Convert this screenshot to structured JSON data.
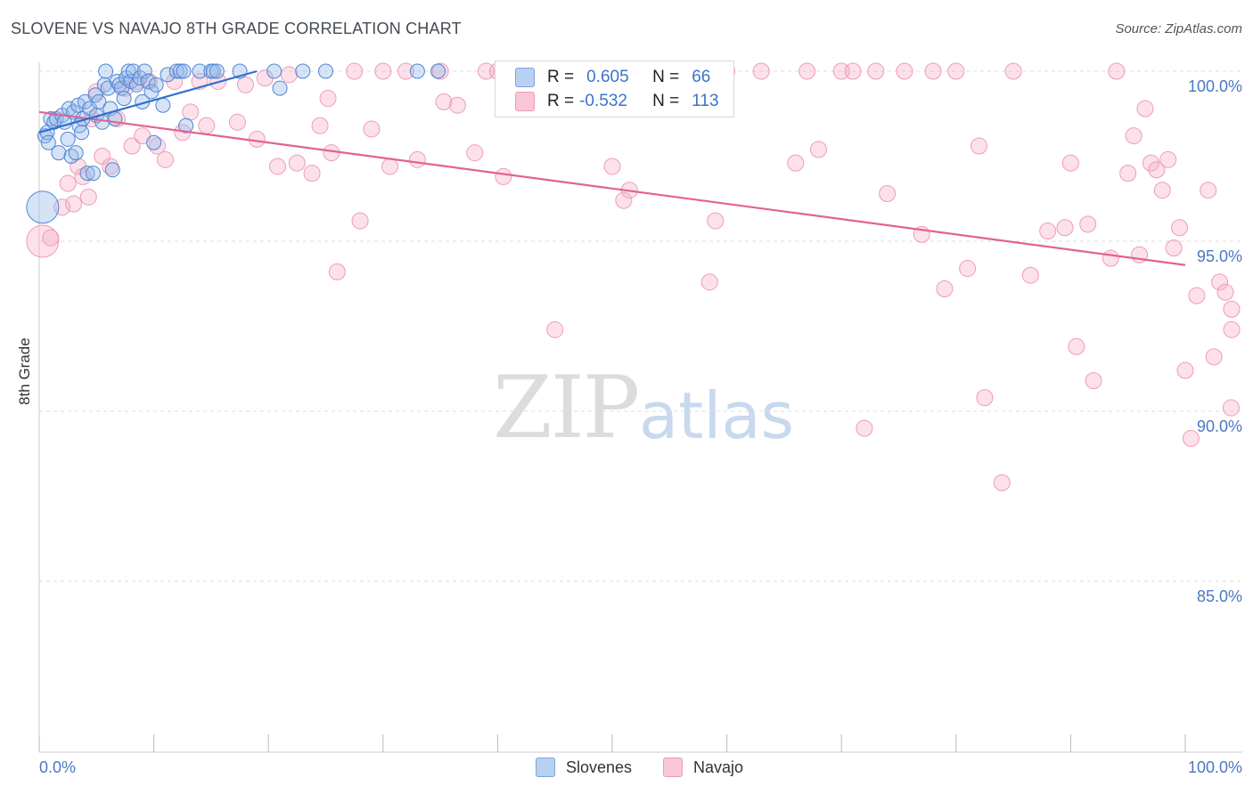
{
  "header": {
    "title": "SLOVENE VS NAVAJO 8TH GRADE CORRELATION CHART",
    "source": "Source: ZipAtlas.com"
  },
  "watermark": {
    "zip": "ZIP",
    "atlas": "atlas"
  },
  "legend": {
    "r_label": "R =",
    "n_label": "N =",
    "slovenes": {
      "r": "0.605",
      "n": "66"
    },
    "navajo": {
      "r": "-0.532",
      "n": "113"
    }
  },
  "bottom_legend": {
    "slovenes": "Slovenes",
    "navajo": "Navajo"
  },
  "chart_data": {
    "type": "scatter",
    "title": "SLOVENE VS NAVAJO 8TH GRADE CORRELATION CHART",
    "xlabel": "",
    "ylabel": "8th Grade",
    "xlim": [
      0,
      100
    ],
    "ylim": [
      80.5,
      100.7
    ],
    "x_tick_labels": [
      "0.0%",
      "100.0%"
    ],
    "y_ticks": [
      85,
      90,
      95,
      100
    ],
    "y_tick_labels": [
      "85.0%",
      "90.0%",
      "95.0%",
      "100.0%"
    ],
    "colors": {
      "slovenes": "#5b8fd8",
      "navajo": "#ee7fa4",
      "slovenes_line": "#2f6fd0",
      "navajo_line": "#e06392"
    },
    "series": [
      {
        "name": "Slovenes",
        "r": 0.605,
        "n": 66,
        "trend": {
          "x": [
            0,
            19
          ],
          "y": [
            98.2,
            100.0
          ]
        },
        "points": [
          [
            0.3,
            96.0
          ],
          [
            0.5,
            98.1
          ],
          [
            0.7,
            98.2
          ],
          [
            0.8,
            97.9
          ],
          [
            1.0,
            98.6
          ],
          [
            1.3,
            98.5
          ],
          [
            1.5,
            98.6
          ],
          [
            1.7,
            97.6
          ],
          [
            2.0,
            98.7
          ],
          [
            2.2,
            98.5
          ],
          [
            2.5,
            98.0
          ],
          [
            2.6,
            98.9
          ],
          [
            2.8,
            97.5
          ],
          [
            3.0,
            98.8
          ],
          [
            3.2,
            97.6
          ],
          [
            3.4,
            99.0
          ],
          [
            3.5,
            98.4
          ],
          [
            3.7,
            98.2
          ],
          [
            3.8,
            98.6
          ],
          [
            4.0,
            99.1
          ],
          [
            4.2,
            97.0
          ],
          [
            4.4,
            98.9
          ],
          [
            4.7,
            97.0
          ],
          [
            4.9,
            99.3
          ],
          [
            5.0,
            98.7
          ],
          [
            5.2,
            99.1
          ],
          [
            5.5,
            98.5
          ],
          [
            5.7,
            99.6
          ],
          [
            5.8,
            100.0
          ],
          [
            6.0,
            99.5
          ],
          [
            6.2,
            98.9
          ],
          [
            6.4,
            97.1
          ],
          [
            6.6,
            98.6
          ],
          [
            6.8,
            99.7
          ],
          [
            7.0,
            99.6
          ],
          [
            7.2,
            99.5
          ],
          [
            7.4,
            99.2
          ],
          [
            7.6,
            99.8
          ],
          [
            7.8,
            100.0
          ],
          [
            8.0,
            99.7
          ],
          [
            8.2,
            100.0
          ],
          [
            8.5,
            99.6
          ],
          [
            8.8,
            99.8
          ],
          [
            9.0,
            99.1
          ],
          [
            9.2,
            100.0
          ],
          [
            9.5,
            99.7
          ],
          [
            9.8,
            99.4
          ],
          [
            10.0,
            97.9
          ],
          [
            10.2,
            99.6
          ],
          [
            10.8,
            99.0
          ],
          [
            11.2,
            99.9
          ],
          [
            12.0,
            100.0
          ],
          [
            12.3,
            100.0
          ],
          [
            12.6,
            100.0
          ],
          [
            12.8,
            98.4
          ],
          [
            14.0,
            100.0
          ],
          [
            15.0,
            100.0
          ],
          [
            15.2,
            100.0
          ],
          [
            15.5,
            100.0
          ],
          [
            17.5,
            100.0
          ],
          [
            20.5,
            100.0
          ],
          [
            21.0,
            99.5
          ],
          [
            23.0,
            100.0
          ],
          [
            25.0,
            100.0
          ],
          [
            33.0,
            100.0
          ],
          [
            34.8,
            100.0
          ]
        ]
      },
      {
        "name": "Navajo",
        "r": -0.532,
        "n": 113,
        "trend": {
          "x": [
            0,
            100
          ],
          "y": [
            98.8,
            94.3
          ]
        },
        "points": [
          [
            0.3,
            95.0
          ],
          [
            1.0,
            95.1
          ],
          [
            2.0,
            96.0
          ],
          [
            2.5,
            96.7
          ],
          [
            3.0,
            96.1
          ],
          [
            3.4,
            97.2
          ],
          [
            3.8,
            96.9
          ],
          [
            4.3,
            96.3
          ],
          [
            4.6,
            98.6
          ],
          [
            5.0,
            99.4
          ],
          [
            5.5,
            97.5
          ],
          [
            6.2,
            97.2
          ],
          [
            6.8,
            98.6
          ],
          [
            7.5,
            99.5
          ],
          [
            8.1,
            97.8
          ],
          [
            8.5,
            99.7
          ],
          [
            9.0,
            98.1
          ],
          [
            9.6,
            99.7
          ],
          [
            10.3,
            97.8
          ],
          [
            11.0,
            97.4
          ],
          [
            11.8,
            99.7
          ],
          [
            12.5,
            98.2
          ],
          [
            13.2,
            98.8
          ],
          [
            14.0,
            99.7
          ],
          [
            14.6,
            98.4
          ],
          [
            15.6,
            99.7
          ],
          [
            17.3,
            98.5
          ],
          [
            18.0,
            99.6
          ],
          [
            19.0,
            98.0
          ],
          [
            19.7,
            99.8
          ],
          [
            20.8,
            97.2
          ],
          [
            21.8,
            99.9
          ],
          [
            22.5,
            97.3
          ],
          [
            23.8,
            97.0
          ],
          [
            24.5,
            98.4
          ],
          [
            25.2,
            99.2
          ],
          [
            25.5,
            97.6
          ],
          [
            26.0,
            94.1
          ],
          [
            27.5,
            100.0
          ],
          [
            28.0,
            95.6
          ],
          [
            29.0,
            98.3
          ],
          [
            30.0,
            100.0
          ],
          [
            30.6,
            97.2
          ],
          [
            32.0,
            100.0
          ],
          [
            33.0,
            97.4
          ],
          [
            35.0,
            100.0
          ],
          [
            35.3,
            99.1
          ],
          [
            36.5,
            99.0
          ],
          [
            38.0,
            97.6
          ],
          [
            39.0,
            100.0
          ],
          [
            40.0,
            100.0
          ],
          [
            40.5,
            96.9
          ],
          [
            43.0,
            100.0
          ],
          [
            45.0,
            92.4
          ],
          [
            47.0,
            100.0
          ],
          [
            49.0,
            100.0
          ],
          [
            50.0,
            97.2
          ],
          [
            51.0,
            96.2
          ],
          [
            51.5,
            96.5
          ],
          [
            53.0,
            100.0
          ],
          [
            54.0,
            100.0
          ],
          [
            55.0,
            100.0
          ],
          [
            56.0,
            100.0
          ],
          [
            57.0,
            100.0
          ],
          [
            58.5,
            93.8
          ],
          [
            59.0,
            95.6
          ],
          [
            60.0,
            100.0
          ],
          [
            63.0,
            100.0
          ],
          [
            66.0,
            97.3
          ],
          [
            67.0,
            100.0
          ],
          [
            68.0,
            97.7
          ],
          [
            70.0,
            100.0
          ],
          [
            71.0,
            100.0
          ],
          [
            72.0,
            89.5
          ],
          [
            73.0,
            100.0
          ],
          [
            74.0,
            96.4
          ],
          [
            75.5,
            100.0
          ],
          [
            77.0,
            95.2
          ],
          [
            78.0,
            100.0
          ],
          [
            79.0,
            93.6
          ],
          [
            80.0,
            100.0
          ],
          [
            81.0,
            94.2
          ],
          [
            82.0,
            97.8
          ],
          [
            82.5,
            90.4
          ],
          [
            84.0,
            87.9
          ],
          [
            85.0,
            100.0
          ],
          [
            86.5,
            94.0
          ],
          [
            88.0,
            95.3
          ],
          [
            89.5,
            95.4
          ],
          [
            90.0,
            97.3
          ],
          [
            90.5,
            91.9
          ],
          [
            91.5,
            95.5
          ],
          [
            92.0,
            90.9
          ],
          [
            93.5,
            94.5
          ],
          [
            94.0,
            100.0
          ],
          [
            95.0,
            97.0
          ],
          [
            95.5,
            98.1
          ],
          [
            96.0,
            94.6
          ],
          [
            96.5,
            98.9
          ],
          [
            97.0,
            97.3
          ],
          [
            97.5,
            97.1
          ],
          [
            98.0,
            96.5
          ],
          [
            98.5,
            97.4
          ],
          [
            99.0,
            94.8
          ],
          [
            99.5,
            95.4
          ],
          [
            100.0,
            91.2
          ],
          [
            100.5,
            89.2
          ],
          [
            101.0,
            93.4
          ],
          [
            102.0,
            96.5
          ],
          [
            102.5,
            91.6
          ],
          [
            103.0,
            93.8
          ],
          [
            103.5,
            93.5
          ],
          [
            104.0,
            90.1
          ],
          [
            104.5,
            93.0
          ],
          [
            105.0,
            92.4
          ]
        ]
      }
    ]
  }
}
